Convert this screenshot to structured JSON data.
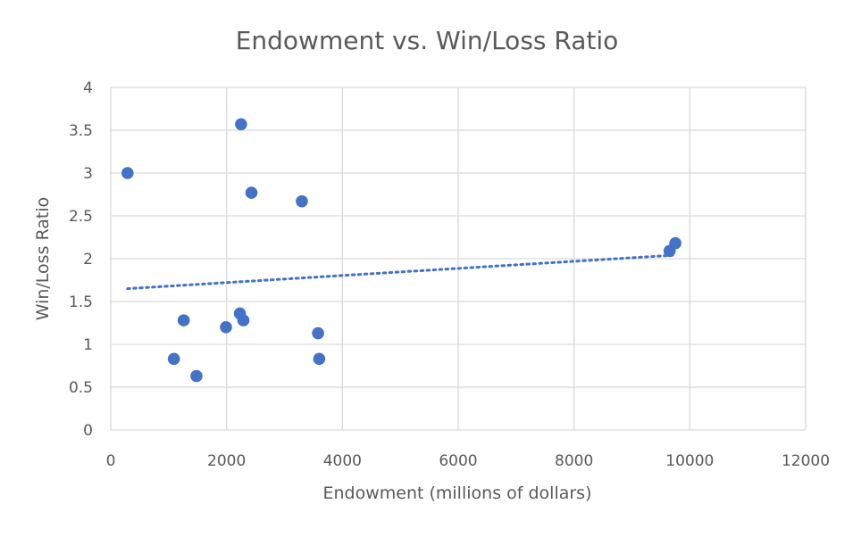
{
  "colors": {
    "series": "#4472c4",
    "trendline": "#4472c4",
    "text": "#595959",
    "grid": "#d9d9d9"
  },
  "chart_data": {
    "type": "scatter",
    "title": "Endowment vs. Win/Loss Ratio",
    "xlabel": "Endowment (millions of dollars)",
    "ylabel": "Win/Loss Ratio",
    "xlim": [
      0,
      12000
    ],
    "ylim": [
      0,
      4
    ],
    "xticks": [
      0,
      2000,
      4000,
      6000,
      8000,
      10000,
      12000
    ],
    "yticks": [
      0,
      0.5,
      1,
      1.5,
      2,
      2.5,
      3,
      3.5,
      4
    ],
    "x_tick_labels": [
      "0",
      "2000",
      "4000",
      "6000",
      "8000",
      "10000",
      "12000"
    ],
    "y_tick_labels": [
      "0",
      "0.5",
      "1",
      "1.5",
      "2",
      "2.5",
      "3",
      "3.5",
      "4"
    ],
    "grid": true,
    "legend": "none",
    "series": [
      {
        "x": [
          290,
          1090,
          1260,
          1480,
          1990,
          2230,
          2250,
          2290,
          2430,
          3300,
          3580,
          3600,
          9650,
          9750
        ],
        "y": [
          3.0,
          0.83,
          1.28,
          0.63,
          1.2,
          1.36,
          3.57,
          1.28,
          2.77,
          2.67,
          1.13,
          0.83,
          2.09,
          2.18
        ]
      }
    ],
    "trendline": {
      "type": "linear",
      "x": [
        290,
        9700
      ],
      "y": [
        1.65,
        2.04
      ]
    }
  }
}
